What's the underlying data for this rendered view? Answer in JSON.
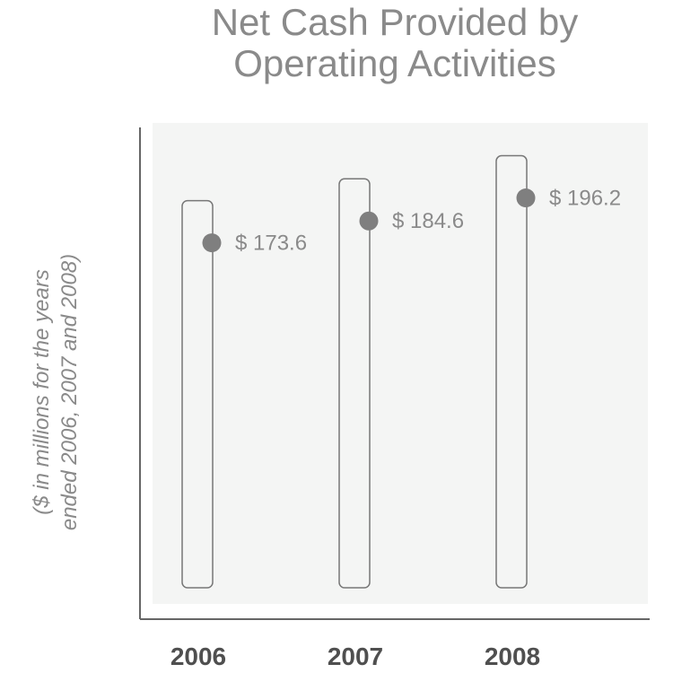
{
  "chart_data": {
    "type": "bar",
    "title": "Net Cash Provided by Operating Activities",
    "title_lines": [
      "Net Cash Provided by",
      "Operating Activities"
    ],
    "ylabel": "($ in millions for the years ended 2006, 2007 and 2008)",
    "ylabel_lines": [
      "($ in millions for the years",
      "ended 2006, 2007 and 2008)"
    ],
    "xlabel": "",
    "categories": [
      "2006",
      "2007",
      "2008"
    ],
    "values": [
      173.6,
      184.6,
      196.2
    ],
    "value_labels": [
      "$ 173.6",
      "$ 184.6",
      "$ 196.2"
    ],
    "ylim": [
      0,
      210
    ],
    "grid": false,
    "colors": {
      "title": "#8a8a8a",
      "panel": "#f4f5f4",
      "bar_outline": "#777777",
      "marker": "#7f7f7f",
      "value_label": "#8a8a8a",
      "axis": "#666666",
      "tick_label": "#4f4f4f"
    }
  }
}
